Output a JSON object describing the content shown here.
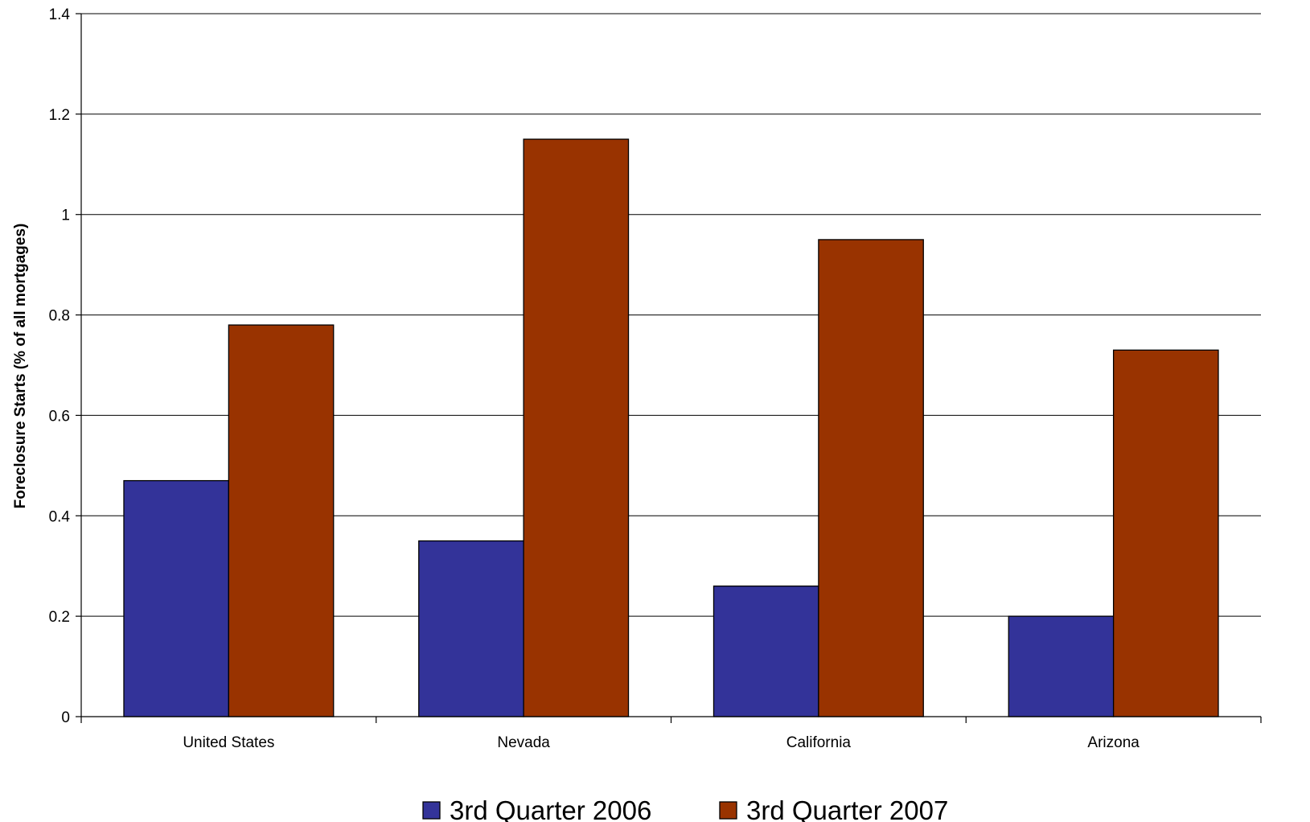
{
  "chart_data": {
    "type": "bar",
    "title": "",
    "xlabel": "",
    "ylabel": "Foreclosure Starts (% of all mortgages)",
    "ylim": [
      0,
      1.4
    ],
    "yticks": [
      0,
      0.2,
      0.4,
      0.6,
      0.8,
      1,
      1.2,
      1.4
    ],
    "ytick_labels": [
      "0",
      "0.2",
      "0.4",
      "0.6",
      "0.8",
      "1",
      "1.2",
      "1.4"
    ],
    "grid": true,
    "legend_position": "bottom",
    "categories": [
      "United States",
      "Nevada",
      "California",
      "Arizona"
    ],
    "series": [
      {
        "name": "3rd Quarter 2006",
        "color": "#333399",
        "values": [
          0.47,
          0.35,
          0.26,
          0.2
        ]
      },
      {
        "name": "3rd Quarter 2007",
        "color": "#993300",
        "values": [
          0.78,
          1.15,
          0.95,
          0.73
        ]
      }
    ]
  }
}
